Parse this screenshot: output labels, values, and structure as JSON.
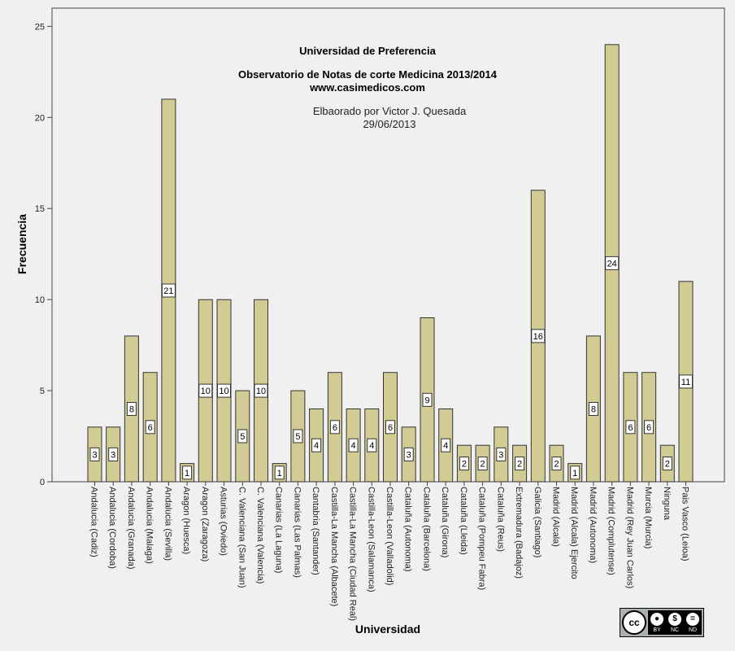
{
  "chart_data": {
    "type": "bar",
    "title": "Universidad de Preferencia",
    "subtitle_lines": [
      "Observatorio de Notas de corte Medicina 2013/2014",
      "www.casimedicos.com"
    ],
    "credit_lines": [
      "Elbaorado por Victor J. Quesada",
      "29/06/2013"
    ],
    "xlabel": "Universidad",
    "ylabel": "Frecuencia",
    "ylim": [
      0,
      26
    ],
    "yticks": [
      0,
      5,
      10,
      15,
      20,
      25
    ],
    "grid": false,
    "bar_color": "#d2cc94",
    "categories": [
      "Andalucia (Cadiz)",
      "Andalucia (Cordoba)",
      "Andalucia (Granada)",
      "Andalucia (Malaga)",
      "Andalucia (Sevilla)",
      "Aragon (Huesca)",
      "Aragon (Zaragoza)",
      "Asturias (Oviedo)",
      "C. Valenciana (San Juan)",
      "C. Valenciana (Valencia)",
      "Canarias (La Laguna)",
      "Canarias (Las Palmas)",
      "Cantabria (Santander)",
      "Castilla-La Mancha (Albacete)",
      "Castilla-La Mancha (Ciudad Real)",
      "Castilla-Leon (Salamanca)",
      "Castilla-Leon (Valladolid)",
      "Cataluña (Autonoma)",
      "Cataluña (Barcelona)",
      "Cataluña (Girona)",
      "Cataluña (Lleida)",
      "Cataluña (Pompeu Fabra)",
      "Cataluña (Reus)",
      "Extremadura (Badajoz)",
      "Galicia (Santiago)",
      "Madrid (Alcala)",
      "Madrid (Alcala) Ejercito",
      "Madrid (Autonoma)",
      "Madrid (Complutense)",
      "Madrid (Rey Juan Carlos)",
      "Murcia (Murcia)",
      "Ninguna",
      "Pais Vasco (Leioa)"
    ],
    "values": [
      3,
      3,
      8,
      6,
      21,
      1,
      10,
      10,
      5,
      10,
      1,
      5,
      4,
      6,
      4,
      4,
      6,
      3,
      9,
      4,
      2,
      2,
      3,
      2,
      16,
      2,
      1,
      8,
      24,
      6,
      6,
      2,
      11
    ]
  },
  "license_badge": {
    "cc": "cc",
    "labels": [
      "BY",
      "NC",
      "ND"
    ],
    "icons": [
      "person-icon",
      "no-dollar-icon",
      "equals-icon"
    ]
  }
}
